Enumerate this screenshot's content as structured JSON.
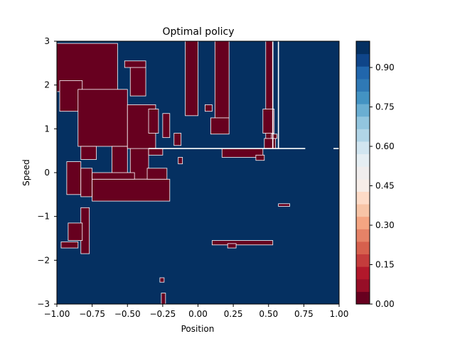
{
  "chart_data": {
    "type": "heatmap",
    "title": "Optimal policy",
    "xlabel": "Position",
    "ylabel": "Speed",
    "xlim": [
      -1.0,
      1.0
    ],
    "ylim": [
      -3,
      3
    ],
    "x_ticks": [
      -1.0,
      -0.75,
      -0.5,
      -0.25,
      0.0,
      0.25,
      0.5,
      0.75,
      1.0
    ],
    "x_tick_labels": [
      "−1.00",
      "−0.75",
      "−0.50",
      "−0.25",
      "0.00",
      "0.25",
      "0.50",
      "0.75",
      "1.00"
    ],
    "y_ticks": [
      -3,
      -2,
      -1,
      0,
      1,
      2,
      3
    ],
    "y_tick_labels": [
      "−3",
      "−2",
      "−1",
      "0",
      "1",
      "2",
      "3"
    ],
    "colorbar": {
      "range": [
        0,
        1
      ],
      "ticks": [
        0.0,
        0.15,
        0.3,
        0.45,
        0.6,
        0.75,
        0.9
      ],
      "tick_labels": [
        "0.00",
        "0.15",
        "0.30",
        "0.45",
        "0.60",
        "0.75",
        "0.90"
      ],
      "levels": 20,
      "colormap": "RdBu",
      "colors": [
        "#67001f",
        "#960e27",
        "#b2182b",
        "#c43c3c",
        "#d6604d",
        "#e58267",
        "#f4a582",
        "#f7c4a6",
        "#fddbc7",
        "#f6ede8",
        "#f0eded",
        "#e5eef3",
        "#d1e5f0",
        "#b1d5e7",
        "#92c5de",
        "#6aaed2",
        "#4393c3",
        "#2f79b5",
        "#2166ac",
        "#0f4589",
        "#053061"
      ]
    },
    "background_value": 1,
    "regions_value": 0,
    "regions_value0": [
      {
        "x": [
          -1.0,
          -0.57
        ],
        "y": [
          1.85,
          2.95
        ]
      },
      {
        "x": [
          -0.98,
          -0.82
        ],
        "y": [
          1.4,
          2.1
        ]
      },
      {
        "x": [
          -0.85,
          -0.5
        ],
        "y": [
          0.6,
          1.9
        ]
      },
      {
        "x": [
          -0.61,
          -0.5
        ],
        "y": [
          -0.1,
          0.6
        ]
      },
      {
        "x": [
          -0.48,
          -0.35
        ],
        "y": [
          -0.15,
          1.55
        ]
      },
      {
        "x": [
          -0.5,
          -0.3
        ],
        "y": [
          0.55,
          1.55
        ]
      },
      {
        "x": [
          -0.35,
          -0.28
        ],
        "y": [
          0.9,
          1.45
        ]
      },
      {
        "x": [
          -0.48,
          -0.37
        ],
        "y": [
          1.75,
          2.45
        ]
      },
      {
        "x": [
          -0.52,
          -0.37
        ],
        "y": [
          2.4,
          2.55
        ]
      },
      {
        "x": [
          -0.83,
          -0.72
        ],
        "y": [
          0.3,
          0.6
        ]
      },
      {
        "x": [
          -0.93,
          -0.83
        ],
        "y": [
          -0.5,
          0.25
        ]
      },
      {
        "x": [
          -0.83,
          -0.75
        ],
        "y": [
          -0.55,
          0.1
        ]
      },
      {
        "x": [
          -0.75,
          -0.2
        ],
        "y": [
          -0.65,
          -0.15
        ]
      },
      {
        "x": [
          -0.75,
          -0.45
        ],
        "y": [
          -0.15,
          0.0
        ]
      },
      {
        "x": [
          -0.36,
          -0.22
        ],
        "y": [
          -0.15,
          0.1
        ]
      },
      {
        "x": [
          -0.35,
          -0.25
        ],
        "y": [
          0.4,
          0.55
        ]
      },
      {
        "x": [
          -0.83,
          -0.77
        ],
        "y": [
          -1.85,
          -0.8
        ]
      },
      {
        "x": [
          -0.92,
          -0.82
        ],
        "y": [
          -1.55,
          -1.15
        ]
      },
      {
        "x": [
          -0.97,
          -0.85
        ],
        "y": [
          -1.72,
          -1.58
        ]
      },
      {
        "x": [
          -0.27,
          -0.24
        ],
        "y": [
          -2.5,
          -2.4
        ]
      },
      {
        "x": [
          -0.26,
          -0.23
        ],
        "y": [
          -3.0,
          -2.75
        ]
      },
      {
        "x": [
          -0.09,
          0.0
        ],
        "y": [
          1.3,
          3.0
        ]
      },
      {
        "x": [
          0.12,
          0.22
        ],
        "y": [
          1.25,
          3.0
        ]
      },
      {
        "x": [
          0.09,
          0.22
        ],
        "y": [
          0.88,
          1.25
        ]
      },
      {
        "x": [
          0.05,
          0.1
        ],
        "y": [
          1.4,
          1.55
        ]
      },
      {
        "x": [
          0.48,
          0.53
        ],
        "y": [
          0.55,
          3.0
        ]
      },
      {
        "x": [
          0.46,
          0.54
        ],
        "y": [
          0.9,
          1.45
        ]
      },
      {
        "x": [
          0.47,
          0.55
        ],
        "y": [
          0.55,
          0.78
        ]
      },
      {
        "x": [
          0.17,
          0.46
        ],
        "y": [
          0.35,
          0.55
        ]
      },
      {
        "x": [
          0.41,
          0.47
        ],
        "y": [
          0.28,
          0.4
        ]
      },
      {
        "x": [
          0.52,
          0.56
        ],
        "y": [
          0.78,
          0.88
        ]
      },
      {
        "x": [
          0.1,
          0.53
        ],
        "y": [
          -1.65,
          -1.55
        ]
      },
      {
        "x": [
          0.21,
          0.27
        ],
        "y": [
          -1.72,
          -1.62
        ]
      },
      {
        "x": [
          0.57,
          0.65
        ],
        "y": [
          -0.77,
          -0.71
        ]
      },
      {
        "x": [
          -0.17,
          -0.12
        ],
        "y": [
          0.62,
          0.9
        ]
      },
      {
        "x": [
          -0.25,
          -0.2
        ],
        "y": [
          0.8,
          1.35
        ]
      },
      {
        "x": [
          -0.14,
          -0.11
        ],
        "y": [
          0.2,
          0.35
        ]
      }
    ],
    "white_lines": [
      {
        "x": [
          -0.35,
          0.76
        ],
        "y": [
          0.55,
          0.55
        ]
      },
      {
        "x": [
          0.96,
          1.0
        ],
        "y": [
          0.55,
          0.55
        ]
      },
      {
        "x": [
          0.53,
          0.53
        ],
        "y": [
          0.55,
          3.0
        ]
      },
      {
        "x": [
          0.57,
          0.57
        ],
        "y": [
          0.55,
          3.0
        ]
      }
    ]
  }
}
